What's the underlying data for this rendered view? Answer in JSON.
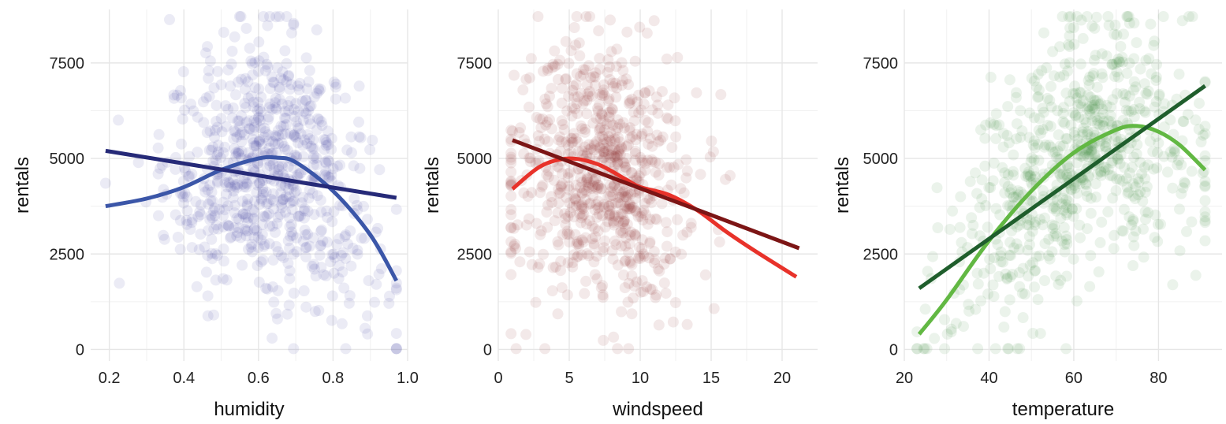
{
  "colors": {
    "humidity": {
      "point": "#3b3f99",
      "smooth": "#3b56a8",
      "linear": "#262a78"
    },
    "windspeed": {
      "point": "#8b2a2a",
      "smooth": "#e8322a",
      "linear": "#7c1515"
    },
    "temperature": {
      "point": "#3c8a3c",
      "smooth": "#62b843",
      "linear": "#1f5e2c"
    }
  },
  "chart_data": [
    {
      "type": "scatter",
      "title": "",
      "xlabel": "humidity",
      "ylabel": "rentals",
      "xlim": [
        0.15,
        1.0
      ],
      "ylim": [
        -300,
        8900
      ],
      "xticks": [
        0.2,
        0.4,
        0.6,
        0.8,
        1.0
      ],
      "xtick_labels": [
        "0.2",
        "0.4",
        "0.6",
        "0.8",
        "1.0"
      ],
      "yticks": [
        0,
        2500,
        5000,
        7500
      ],
      "ytick_labels": [
        "0",
        "2500",
        "5000",
        "7500"
      ],
      "grid": true,
      "legend": "none",
      "points": {
        "count": 731,
        "x_center": 0.63,
        "x_sd": 0.14,
        "x_range": [
          0.19,
          0.97
        ],
        "y_range": [
          22,
          8714
        ]
      },
      "smooth_line": {
        "x": [
          0.19,
          0.3,
          0.4,
          0.5,
          0.6,
          0.65,
          0.7,
          0.8,
          0.9,
          0.97
        ],
        "y": [
          3750,
          3950,
          4250,
          4700,
          5000,
          5020,
          4900,
          4150,
          3000,
          1800
        ]
      },
      "linear_fit": {
        "x": [
          0.19,
          0.97
        ],
        "y": [
          5200,
          3970
        ]
      }
    },
    {
      "type": "scatter",
      "title": "",
      "xlabel": "windspeed",
      "ylabel": "rentals",
      "xlim": [
        0,
        22.5
      ],
      "ylim": [
        -300,
        8900
      ],
      "xticks": [
        0,
        5,
        10,
        15,
        20
      ],
      "xtick_labels": [
        "0",
        "5",
        "10",
        "15",
        "20"
      ],
      "yticks": [
        0,
        2500,
        5000,
        7500
      ],
      "ytick_labels": [
        "0",
        "2500",
        "5000",
        "7500"
      ],
      "grid": true,
      "legend": "none",
      "points": {
        "count": 731,
        "x_center": 7.0,
        "x_sd": 3.2,
        "x_range": [
          0.9,
          21.1
        ],
        "y_range": [
          22,
          8714
        ]
      },
      "smooth_line": {
        "x": [
          1,
          3,
          5,
          7,
          9,
          10,
          12,
          14,
          16,
          18,
          21
        ],
        "y": [
          4200,
          4800,
          5000,
          4850,
          4450,
          4250,
          4050,
          3650,
          3100,
          2600,
          1900
        ]
      },
      "linear_fit": {
        "x": [
          1,
          21.2
        ],
        "y": [
          5480,
          2650
        ]
      }
    },
    {
      "type": "scatter",
      "title": "",
      "xlabel": "temperature",
      "ylabel": "rentals",
      "xlim": [
        20,
        95
      ],
      "ylim": [
        -300,
        8900
      ],
      "xticks": [
        20,
        40,
        60,
        80
      ],
      "xtick_labels": [
        "20",
        "40",
        "60",
        "80"
      ],
      "yticks": [
        0,
        2500,
        5000,
        7500
      ],
      "ytick_labels": [
        "0",
        "2500",
        "5000",
        "7500"
      ],
      "grid": true,
      "legend": "none",
      "points": {
        "count": 731,
        "x_center": 60,
        "x_sd": 15,
        "x_range": [
          23,
          91
        ],
        "y_range": [
          22,
          8714
        ]
      },
      "smooth_line": {
        "x": [
          23.5,
          30,
          40,
          50,
          60,
          70,
          75,
          80,
          85,
          91
        ],
        "y": [
          400,
          1300,
          2850,
          4150,
          5150,
          5750,
          5850,
          5700,
          5350,
          4700
        ]
      },
      "linear_fit": {
        "x": [
          23.5,
          91
        ],
        "y": [
          1600,
          6900
        ]
      }
    }
  ]
}
